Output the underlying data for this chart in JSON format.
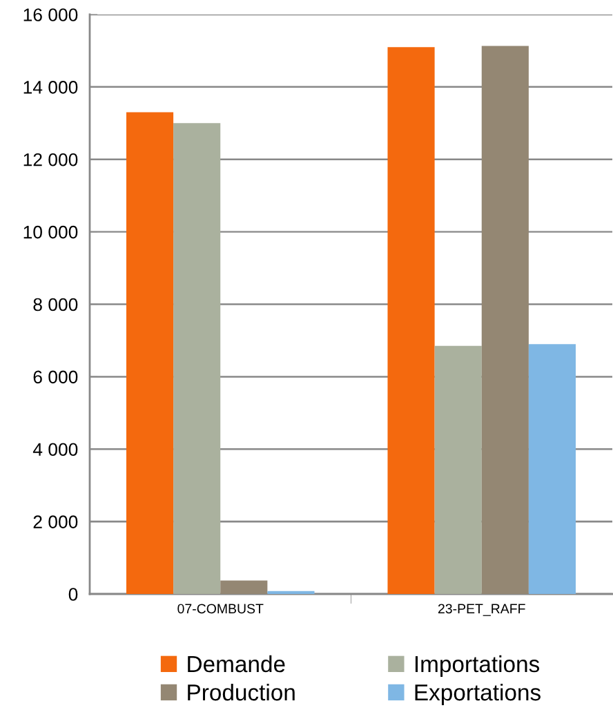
{
  "chart_data": {
    "type": "bar",
    "categories": [
      "07-COMBUST",
      "23-PET_RAFF"
    ],
    "series": [
      {
        "name": "Demande",
        "color": "#f4690e",
        "values": [
          13300,
          15100
        ]
      },
      {
        "name": "Importations",
        "color": "#aab19e",
        "values": [
          13000,
          6850
        ]
      },
      {
        "name": "Production",
        "color": "#948773",
        "values": [
          370,
          15130
        ]
      },
      {
        "name": "Exportations",
        "color": "#7fb7e4",
        "values": [
          80,
          6900
        ]
      }
    ],
    "ylim": [
      0,
      16000
    ],
    "yticks": [
      {
        "value": 0,
        "label": "0"
      },
      {
        "value": 2000,
        "label": "2 000"
      },
      {
        "value": 4000,
        "label": "4 000"
      },
      {
        "value": 6000,
        "label": "6 000"
      },
      {
        "value": 8000,
        "label": "8 000"
      },
      {
        "value": 10000,
        "label": "10 000"
      },
      {
        "value": 12000,
        "label": "12 000"
      },
      {
        "value": 14000,
        "label": "14 000"
      },
      {
        "value": 16000,
        "label": "16 000"
      }
    ],
    "grid": "y",
    "legend": "bottom"
  }
}
